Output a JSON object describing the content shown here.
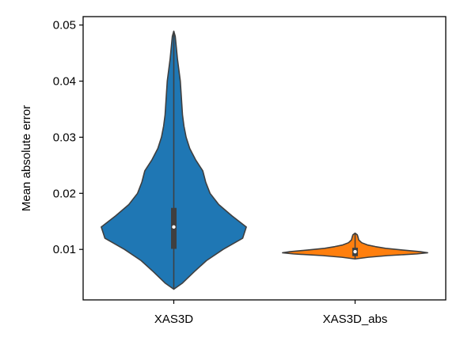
{
  "chart_data": {
    "type": "violin",
    "title": "",
    "xlabel": "",
    "ylabel": "Mean absolute error",
    "ylim": [
      0.001,
      0.0515
    ],
    "yticks": [
      0.01,
      0.02,
      0.03,
      0.04,
      0.05
    ],
    "ytick_labels": [
      "0.01",
      "0.02",
      "0.03",
      "0.04",
      "0.05"
    ],
    "grid": false,
    "categories": [
      "XAS3D",
      "XAS3D_abs"
    ],
    "series": [
      {
        "category": "XAS3D",
        "color": "#1f77b4",
        "min": 0.0029,
        "max": 0.0489,
        "q1": 0.0101,
        "median": 0.014,
        "q3": 0.0174,
        "density": [
          [
            0.0029,
            0.0
          ],
          [
            0.004,
            0.12
          ],
          [
            0.006,
            0.28
          ],
          [
            0.008,
            0.45
          ],
          [
            0.01,
            0.68
          ],
          [
            0.012,
            0.95
          ],
          [
            0.014,
            1.0
          ],
          [
            0.016,
            0.8
          ],
          [
            0.018,
            0.62
          ],
          [
            0.02,
            0.5
          ],
          [
            0.022,
            0.44
          ],
          [
            0.024,
            0.4
          ],
          [
            0.026,
            0.3
          ],
          [
            0.028,
            0.22
          ],
          [
            0.03,
            0.17
          ],
          [
            0.032,
            0.14
          ],
          [
            0.034,
            0.12
          ],
          [
            0.036,
            0.11
          ],
          [
            0.038,
            0.1
          ],
          [
            0.04,
            0.09
          ],
          [
            0.042,
            0.07
          ],
          [
            0.044,
            0.05
          ],
          [
            0.046,
            0.035
          ],
          [
            0.048,
            0.02
          ],
          [
            0.0489,
            0.0
          ]
        ]
      },
      {
        "category": "XAS3D_abs",
        "color": "#ff7f0e",
        "min": 0.0083,
        "max": 0.0129,
        "q1": 0.0088,
        "median": 0.0096,
        "q3": 0.0103,
        "density": [
          [
            0.0083,
            0.0
          ],
          [
            0.0086,
            0.18
          ],
          [
            0.0089,
            0.45
          ],
          [
            0.0092,
            0.85
          ],
          [
            0.0094,
            1.0
          ],
          [
            0.0096,
            0.9
          ],
          [
            0.0099,
            0.65
          ],
          [
            0.0102,
            0.42
          ],
          [
            0.0105,
            0.28
          ],
          [
            0.0108,
            0.17
          ],
          [
            0.0112,
            0.09
          ],
          [
            0.0117,
            0.05
          ],
          [
            0.0122,
            0.04
          ],
          [
            0.0126,
            0.03
          ],
          [
            0.0129,
            0.0
          ]
        ]
      }
    ]
  }
}
